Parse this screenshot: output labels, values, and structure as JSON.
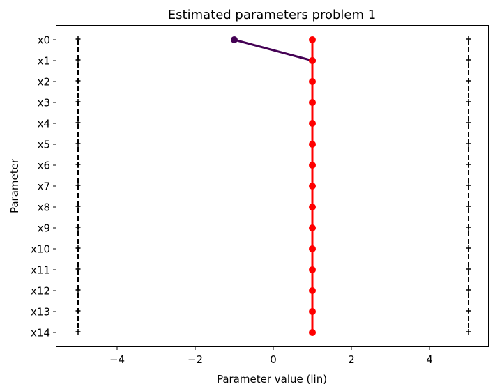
{
  "chart_data": {
    "type": "line",
    "title": "Estimated parameters problem 1",
    "xlabel": "Parameter value (lin)",
    "ylabel": "Parameter",
    "xlim": [
      -5.5,
      5.55
    ],
    "x_ticks": [
      -4,
      -2,
      0,
      2,
      4
    ],
    "x_tick_labels": [
      "−4",
      "−2",
      "0",
      "2",
      "4"
    ],
    "categories": [
      "x0",
      "x1",
      "x2",
      "x3",
      "x4",
      "x5",
      "x6",
      "x7",
      "x8",
      "x9",
      "x10",
      "x11",
      "x12",
      "x13",
      "x14"
    ],
    "grid": false,
    "legend": null,
    "series": [
      {
        "name": "estimate (dark purple)",
        "color": "#440154",
        "values": [
          -1,
          1,
          null,
          null,
          null,
          null,
          null,
          null,
          null,
          null,
          null,
          null,
          null,
          null,
          null
        ]
      },
      {
        "name": "estimate (red)",
        "color": "#ff0000",
        "values": [
          1,
          1,
          1,
          1,
          1,
          1,
          1,
          1,
          1,
          1,
          1,
          1,
          1,
          1,
          1
        ]
      },
      {
        "name": "lower bound",
        "color": "#000000",
        "style": "dashed",
        "marker": "+",
        "values": [
          -5,
          -5,
          -5,
          -5,
          -5,
          -5,
          -5,
          -5,
          -5,
          -5,
          -5,
          -5,
          -5,
          -5,
          -5
        ]
      },
      {
        "name": "upper bound",
        "color": "#000000",
        "style": "dashed",
        "marker": "+",
        "values": [
          5,
          5,
          5,
          5,
          5,
          5,
          5,
          5,
          5,
          5,
          5,
          5,
          5,
          5,
          5
        ]
      }
    ]
  }
}
